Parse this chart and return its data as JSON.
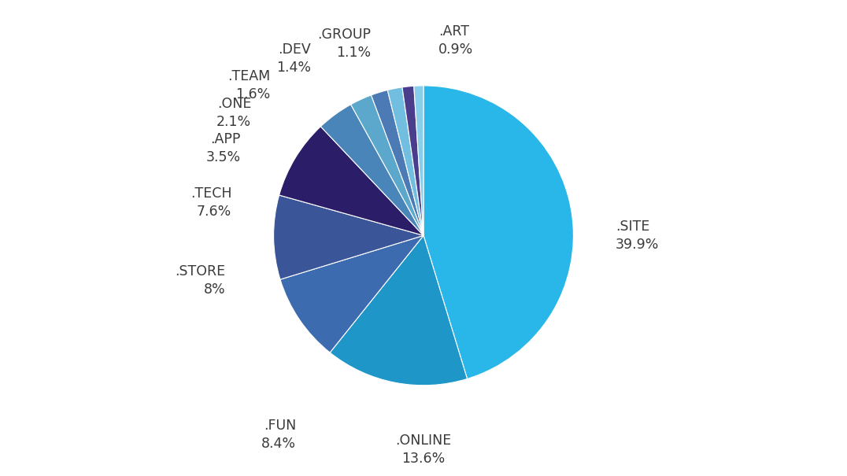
{
  "labels": [
    ".SITE",
    ".ONLINE",
    ".FUN",
    ".STORE",
    ".TECH",
    ".APP",
    ".ONE",
    ".TEAM",
    ".DEV",
    ".GROUP",
    ".ART"
  ],
  "values": [
    39.9,
    13.6,
    8.4,
    8.0,
    7.6,
    3.5,
    2.1,
    1.6,
    1.4,
    1.1,
    0.9
  ],
  "colors": [
    "#29B6E8",
    "#1E96C8",
    "#3D6BB0",
    "#3A5699",
    "#2B1D68",
    "#4A85BA",
    "#5BA8CC",
    "#4C7AB5",
    "#72BEE0",
    "#4A3E8C",
    "#88CEEA"
  ],
  "figsize": [
    10.76,
    6.05
  ],
  "dpi": 100,
  "background_color": "#FFFFFF",
  "text_color": "#3A3A3A",
  "font_size": 12.5
}
